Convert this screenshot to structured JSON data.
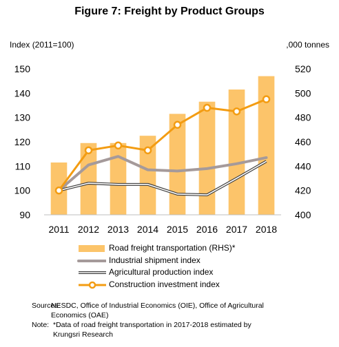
{
  "title": "Figure 7:  Freight by Product Groups",
  "chart_data": {
    "type": "bar",
    "title": "Figure 7:  Freight by Product Groups",
    "categories": [
      "2011",
      "2012",
      "2013",
      "2014",
      "2015",
      "2016",
      "2017",
      "2018"
    ],
    "left_axis": {
      "label": "Index (2011=100)",
      "ylim": [
        90,
        150
      ],
      "ticks": [
        "90",
        "100",
        "110",
        "120",
        "130",
        "140",
        "150"
      ]
    },
    "right_axis": {
      "label": ",000 tonnes",
      "ylim": [
        400,
        520
      ],
      "ticks": [
        "400",
        "420",
        "440",
        "460",
        "480",
        "500",
        "520"
      ]
    },
    "grid": false,
    "legend_position": "bottom",
    "series": [
      {
        "name": "Road freight transportation (RHS)*",
        "type": "bar",
        "axis": "right",
        "color": "#FCC46A",
        "values": [
          443,
          459,
          459,
          465,
          483,
          493,
          503,
          514
        ]
      },
      {
        "name": "Industrial shipment index",
        "type": "line",
        "axis": "left",
        "color": "#A59A9A",
        "values": [
          100,
          110.5,
          114,
          108.5,
          108,
          109,
          111,
          113.5
        ]
      },
      {
        "name": "Agricultural production index",
        "type": "line",
        "axis": "left",
        "color": "#404040",
        "style": "double",
        "values": [
          100,
          103,
          102.5,
          102.5,
          98.5,
          98.2,
          105,
          112
        ]
      },
      {
        "name": "Construction investment index",
        "type": "line",
        "axis": "left",
        "color": "#F39C12",
        "marker": "circle",
        "values": [
          100,
          116.5,
          118.5,
          116.5,
          127,
          134,
          132.5,
          137.5
        ]
      }
    ]
  },
  "notes": {
    "sources_label": "Sources:",
    "sources_line1": "NESDC, Office of Industrial Economics (OIE), Office of Agricultural",
    "sources_line2": "Economics (OAE)",
    "note_label": "Note:",
    "note_line1": "*Data of  road freight transportation in 2017-2018 estimated by",
    "note_line2": "Krungsri Research"
  }
}
